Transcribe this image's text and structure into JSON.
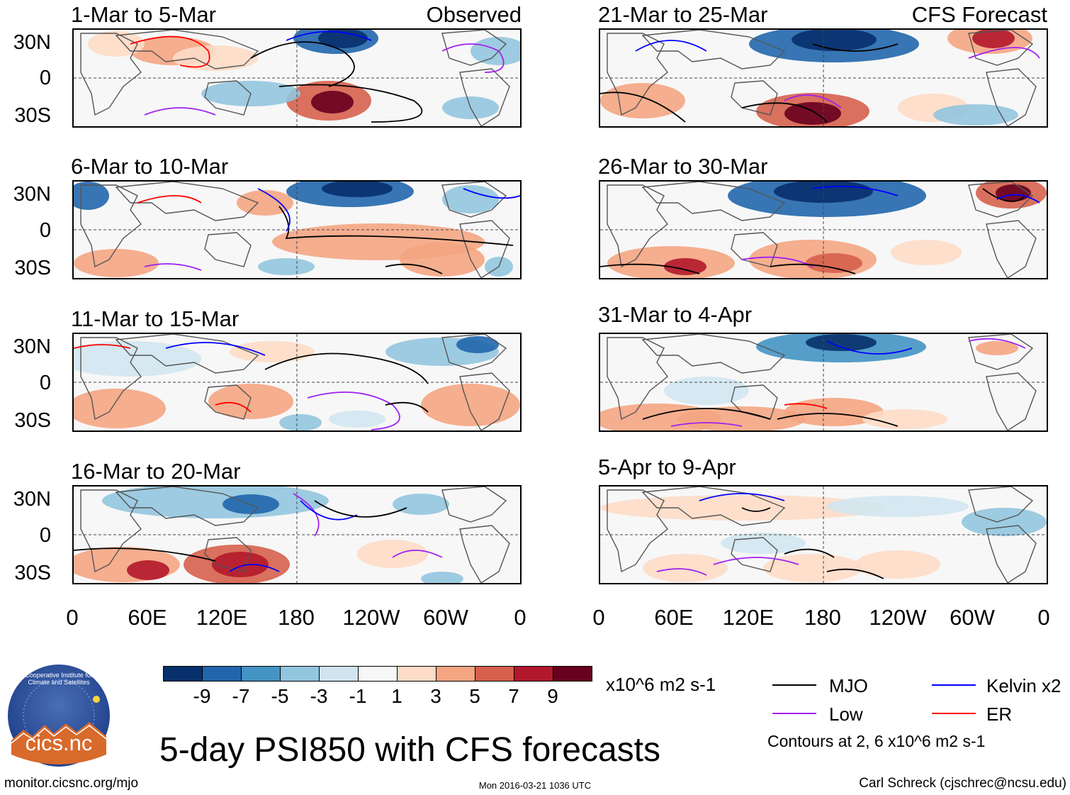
{
  "panels": [
    {
      "title": "1-Mar to 5-Mar",
      "tag": "Observed"
    },
    {
      "title": "6-Mar to 10-Mar",
      "tag": ""
    },
    {
      "title": "11-Mar to 15-Mar",
      "tag": ""
    },
    {
      "title": "16-Mar to 20-Mar",
      "tag": ""
    },
    {
      "title": "21-Mar to 25-Mar",
      "tag": "CFS Forecast"
    },
    {
      "title": "26-Mar to 30-Mar",
      "tag": ""
    },
    {
      "title": "31-Mar to 4-Apr",
      "tag": ""
    },
    {
      "title": "5-Apr to 9-Apr",
      "tag": ""
    }
  ],
  "lat_labels": [
    "30N",
    "0",
    "30S"
  ],
  "lon_labels": [
    "0",
    "60E",
    "120E",
    "180",
    "120W",
    "60W",
    "0"
  ],
  "colorbar": {
    "unit": "x10^6 m2 s-1",
    "labels": [
      "-9",
      "-7",
      "-5",
      "-3",
      "-1",
      "1",
      "3",
      "5",
      "7",
      "9"
    ],
    "colors": [
      "#08306b",
      "#2166ac",
      "#4393c3",
      "#92c5de",
      "#d1e5f0",
      "#f7f7f7",
      "#fddbc7",
      "#f4a582",
      "#d6604d",
      "#b2182b",
      "#67001f"
    ]
  },
  "legend": {
    "mjo": "MJO",
    "kelvin": "Kelvin x2",
    "low": "Low",
    "er": "ER",
    "contours_note": "Contours at 2, 6 x10^6 m2 s-1",
    "colors": {
      "mjo": "#000000",
      "kelvin": "#0000ff",
      "low": "#a020f0",
      "er": "#ff0000"
    }
  },
  "main_title": "5-day PSI850 with CFS forecasts",
  "logo_text": "cics.nc",
  "logo_ring": "Cooperative Institute for Climate and Satellites",
  "footer": {
    "left": "monitor.cicsnc.org/mjo",
    "center": "Mon 2016-03-21 1036 UTC",
    "right": "Carl Schreck (cjschrec@ncsu.edu)"
  }
}
